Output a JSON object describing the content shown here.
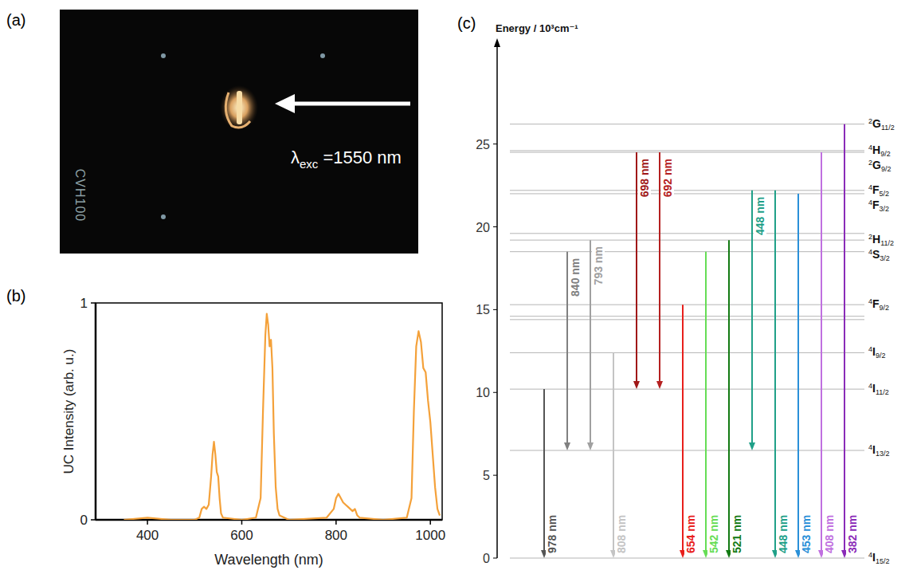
{
  "photo": {
    "panel_label": "(a)",
    "excitation_label": {
      "prefix": "λ",
      "sub": "exc",
      "rest": " =1550 nm"
    },
    "marking": "CVH100"
  },
  "chart_data": [
    {
      "type": "line",
      "panel_label": "(b)",
      "x_label": "Wavelength (nm)",
      "y_label": "UC Intensity (arb. u.)",
      "xlim": [
        290,
        1025
      ],
      "xticks": [
        400,
        600,
        800,
        1000
      ],
      "ylim": [
        0,
        1
      ],
      "yticks": [
        0,
        1
      ],
      "grid": false,
      "x": [
        350,
        400,
        450,
        500,
        510,
        515,
        520,
        525,
        530,
        535,
        538,
        541,
        544,
        547,
        550,
        553,
        556,
        560,
        600,
        630,
        640,
        645,
        650,
        653,
        656,
        659,
        662,
        665,
        668,
        672,
        676,
        680,
        700,
        780,
        795,
        800,
        805,
        810,
        815,
        820,
        825,
        830,
        835,
        840,
        845,
        850,
        900,
        950,
        960,
        965,
        970,
        975,
        980,
        985,
        990,
        995,
        1000,
        1005,
        1010,
        1015,
        1020
      ],
      "series": [
        {
          "color": "#f4a13a",
          "values": [
            0,
            0.01,
            0,
            0,
            0.01,
            0.05,
            0.06,
            0.05,
            0.07,
            0.2,
            0.3,
            0.36,
            0.3,
            0.22,
            0.2,
            0.1,
            0.03,
            0.01,
            0,
            0.01,
            0.1,
            0.5,
            0.85,
            0.95,
            0.9,
            0.8,
            0.83,
            0.7,
            0.4,
            0.15,
            0.05,
            0.02,
            0,
            0.01,
            0.05,
            0.1,
            0.12,
            0.1,
            0.08,
            0.07,
            0.06,
            0.05,
            0.04,
            0.05,
            0.02,
            0.01,
            0,
            0.01,
            0.1,
            0.5,
            0.8,
            0.87,
            0.82,
            0.7,
            0.68,
            0.55,
            0.45,
            0.3,
            0.15,
            0.05,
            0.02
          ]
        }
      ]
    },
    {
      "type": "energy_levels",
      "panel_label": "(c)",
      "y_label": "Energy / 10³cm⁻¹",
      "ylim": [
        0,
        31
      ],
      "yticks": [
        0,
        5,
        10,
        15,
        20,
        25
      ],
      "grid": false,
      "levels": [
        {
          "energy": 0,
          "sup": "4",
          "term": "I",
          "sub": "15/2"
        },
        {
          "energy": 6.5,
          "sup": "4",
          "term": "I",
          "sub": "13/2"
        },
        {
          "energy": 10.2,
          "sup": "4",
          "term": "I",
          "sub": "11/2"
        },
        {
          "energy": 12.4,
          "sup": "4",
          "term": "I",
          "sub": "9/2"
        },
        {
          "energy": 14.4
        },
        {
          "energy": 14.6
        },
        {
          "energy": 15.3,
          "sup": "4",
          "term": "F",
          "sub": "9/2"
        },
        {
          "energy": 18.5,
          "sup": "4",
          "term": "S",
          "sub": "3/2"
        },
        {
          "energy": 19.2,
          "sup": "2",
          "term": "H",
          "sub": "11/2"
        },
        {
          "energy": 19.6
        },
        {
          "energy": 22.0,
          "sup": "4",
          "term": "F",
          "sub": "3/2"
        },
        {
          "energy": 22.2,
          "sup": "4",
          "term": "F",
          "sub": "5/2"
        },
        {
          "energy": 24.5,
          "sup": "2",
          "term": "G",
          "sub": "9/2"
        },
        {
          "energy": 24.6,
          "sup": "4",
          "term": "H",
          "sub": "9/2"
        },
        {
          "energy": 26.2,
          "sup": "2",
          "term": "G",
          "sub": "11/2"
        }
      ],
      "transitions": [
        {
          "label": "978 nm",
          "from": 10.2,
          "to": 0,
          "color": "#555555"
        },
        {
          "label": "840 nm",
          "from": 18.5,
          "to": 6.5,
          "color": "#808080"
        },
        {
          "label": "793 nm",
          "from": 19.2,
          "to": 6.5,
          "color": "#a0a0a0"
        },
        {
          "label": "808 nm",
          "from": 12.4,
          "to": 0,
          "color": "#c4c4c4"
        },
        {
          "label": "698 nm",
          "from": 24.5,
          "to": 10.2,
          "color": "#a01818"
        },
        {
          "label": "692 nm",
          "from": 24.5,
          "to": 10.2,
          "color": "#b52020"
        },
        {
          "label": "654 nm",
          "from": 15.3,
          "to": 0,
          "color": "#e8201c"
        },
        {
          "label": "542 nm",
          "from": 18.5,
          "to": 0,
          "color": "#66dd55"
        },
        {
          "label": "521 nm",
          "from": 19.2,
          "to": 0,
          "color": "#137a13"
        },
        {
          "label": "448 nm",
          "from": 22.2,
          "to": 6.5,
          "color": "#20a088"
        },
        {
          "label": "448 nm",
          "from": 22.2,
          "to": 0,
          "color": "#20a088"
        },
        {
          "label": "453 nm",
          "from": 22.0,
          "to": 0,
          "color": "#2a90d8"
        },
        {
          "label": "408 nm",
          "from": 24.5,
          "to": 0,
          "color": "#c070e0"
        },
        {
          "label": "382 nm",
          "from": 26.2,
          "to": 0,
          "color": "#8a2bb8"
        }
      ]
    }
  ]
}
